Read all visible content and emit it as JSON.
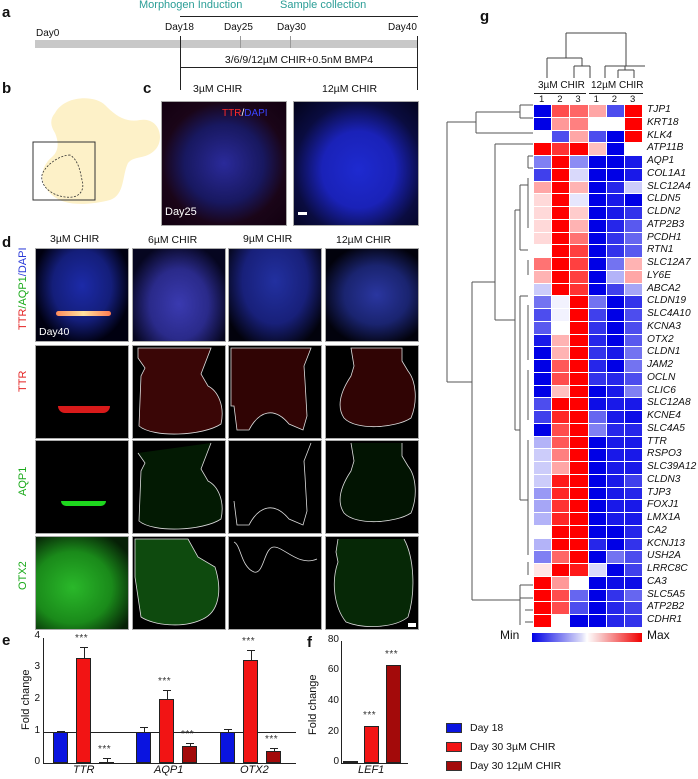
{
  "panels": {
    "a": {
      "label": "a",
      "phase_labels": [
        "Morphogen Induction",
        "Sample collection"
      ],
      "days": [
        "Day0",
        "Day18",
        "Day25",
        "Day30",
        "Day40"
      ],
      "treatment": "3/6/9/12µM CHIR+0.5nM BMP4"
    },
    "b": {
      "label": "b"
    },
    "c": {
      "label": "c",
      "conditions": [
        "3µM CHIR",
        "12µM CHIR"
      ],
      "stain_ttr": "TTR",
      "stain_sep": "/",
      "stain_dapi": "DAPI",
      "day": "Day25"
    },
    "d": {
      "label": "d",
      "conditions": [
        "3µM CHIR",
        "6µM CHIR",
        "9µM CHIR",
        "12µM CHIR"
      ],
      "row_labels": [
        "TTR/AQP1/DAPI",
        "TTR",
        "AQP1",
        "OTX2"
      ],
      "row1_parts": [
        "TTR",
        "/AQP1",
        "/DAPI"
      ],
      "day": "Day40"
    },
    "e": {
      "label": "e"
    },
    "f": {
      "label": "f"
    },
    "g": {
      "label": "g",
      "group_labels": [
        "3µM CHIR",
        "12µM CHIR"
      ],
      "replicates": [
        "1",
        "2",
        "3",
        "1",
        "2",
        "3"
      ],
      "scale_min": "Min",
      "scale_max": "Max"
    }
  },
  "legend": {
    "items": [
      {
        "label": "Day 18",
        "color": "#0a14e0"
      },
      {
        "label": "Day 30 3µM CHIR",
        "color": "#f21414"
      },
      {
        "label": "Day 30 12µM CHIR",
        "color": "#a30a0a"
      }
    ]
  },
  "chart_data": [
    {
      "type": "bar",
      "panel": "e",
      "title": "",
      "xlabel": "",
      "ylabel": "Fold change",
      "ylim": [
        0,
        4
      ],
      "yticks": [
        "0",
        "1",
        "2",
        "3",
        "4"
      ],
      "categories": [
        "TTR",
        "AQP1",
        "OTX2"
      ],
      "reference_line": 1,
      "series": [
        {
          "name": "Day 18",
          "values": [
            1.0,
            1.0,
            1.0
          ],
          "errors": [
            0.03,
            0.15,
            0.1
          ]
        },
        {
          "name": "Day 30 3µM CHIR",
          "values": [
            3.35,
            2.05,
            3.3
          ],
          "errors": [
            0.35,
            0.3,
            0.33
          ]
        },
        {
          "name": "Day 30 12µM CHIR",
          "values": [
            0.03,
            0.55,
            0.38
          ],
          "errors": [
            0.13,
            0.1,
            0.1
          ]
        }
      ],
      "annotations": [
        {
          "category": "TTR",
          "series": "Day 30 3µM CHIR",
          "text": "***"
        },
        {
          "category": "TTR",
          "series": "Day 30 12µM CHIR",
          "text": "***"
        },
        {
          "category": "AQP1",
          "series": "Day 30 3µM CHIR",
          "text": "***"
        },
        {
          "category": "AQP1",
          "series": "Day 30 12µM CHIR",
          "text": "***"
        },
        {
          "category": "OTX2",
          "series": "Day 30 3µM CHIR",
          "text": "***"
        },
        {
          "category": "OTX2",
          "series": "Day 30 12µM CHIR",
          "text": "***"
        }
      ]
    },
    {
      "type": "bar",
      "panel": "f",
      "title": "",
      "xlabel": "",
      "ylabel": "Fold change",
      "ylim": [
        0,
        80
      ],
      "yticks": [
        "0",
        "20",
        "40",
        "60",
        "80"
      ],
      "categories": [
        "LEF1"
      ],
      "series": [
        {
          "name": "Day 18",
          "values": [
            1.0
          ]
        },
        {
          "name": "Day 30 3µM CHIR",
          "values": [
            24
          ]
        },
        {
          "name": "Day 30 12µM CHIR",
          "values": [
            64.5
          ]
        }
      ],
      "annotations": [
        {
          "category": "LEF1",
          "series": "Day 30 3µM CHIR",
          "text": "***"
        },
        {
          "category": "LEF1",
          "series": "Day 30 12µM CHIR",
          "text": "***"
        }
      ]
    },
    {
      "type": "heatmap",
      "panel": "g",
      "title": "",
      "columns": [
        "3µM CHIR 1",
        "3µM CHIR 2",
        "3µM CHIR 3",
        "12µM CHIR 1",
        "12µM CHIR 2",
        "12µM CHIR 3"
      ],
      "scale": [
        "Min",
        "Max"
      ],
      "rows": [
        "TJP1",
        "KRT18",
        "KLK4",
        "ATP11B",
        "AQP1",
        "COL1A1",
        "SLC12A4",
        "CLDN5",
        "CLDN2",
        "ATP2B3",
        "PCDH1",
        "RTN1",
        "SLC12A7",
        "LY6E",
        "ABCA2",
        "CLDN19",
        "SLC4A10",
        "KCNA3",
        "OTX2",
        "CLDN1",
        "JAM2",
        "OCLN",
        "CLIC6",
        "SLC12A8",
        "KCNE4",
        "SLC4A5",
        "TTR",
        "RSPO3",
        "SLC39A12",
        "CLDN3",
        "TJP3",
        "FOXJ1",
        "LMX1A",
        "CA2",
        "KCNJ13",
        "USH2A",
        "LRRC8C",
        "CA3",
        "SLC5A5",
        "ATP2B2",
        "CDHR1"
      ],
      "values": [
        [
          -1,
          0.7,
          0.6,
          0.35,
          -0.7,
          1
        ],
        [
          -1,
          0.4,
          0.5,
          0,
          0,
          1
        ],
        [
          0,
          -0.7,
          0.35,
          -0.7,
          -1,
          1
        ],
        [
          1,
          0.8,
          1,
          0.25,
          -1,
          0
        ],
        [
          -0.5,
          1,
          -0.45,
          -1,
          -1,
          -0.9
        ],
        [
          -0.75,
          1,
          -0.15,
          -1,
          -1,
          -0.9
        ],
        [
          0.35,
          1,
          0.3,
          -1,
          -0.85,
          -0.2
        ],
        [
          0.15,
          1,
          -0.1,
          -1,
          -0.9,
          -1
        ],
        [
          0.15,
          1,
          0.2,
          -1,
          -0.9,
          -0.8
        ],
        [
          0.15,
          1,
          0.3,
          -1,
          -0.85,
          -0.65
        ],
        [
          0.15,
          1,
          0.55,
          -1,
          -0.8,
          -0.6
        ],
        [
          0,
          1,
          0.75,
          -1,
          -0.8,
          -0.65
        ],
        [
          0.55,
          1,
          0.75,
          -1,
          -0.55,
          0.3
        ],
        [
          0.3,
          1,
          0.75,
          -1,
          -0.3,
          0.35
        ],
        [
          -0.2,
          1,
          0.8,
          -1,
          -0.75,
          -0.35
        ],
        [
          -0.55,
          -0.05,
          1,
          -0.55,
          -1,
          -0.8
        ],
        [
          -0.7,
          -0.05,
          1,
          -0.75,
          -1,
          -0.7
        ],
        [
          -0.65,
          0,
          1,
          -0.8,
          -1,
          -0.7
        ],
        [
          -0.9,
          0.3,
          1,
          -0.85,
          -1,
          -0.65
        ],
        [
          -1,
          0.3,
          1,
          -0.8,
          -0.9,
          -0.55
        ],
        [
          -1,
          0.65,
          1,
          -0.85,
          -1,
          -0.55
        ],
        [
          -1,
          0.7,
          1,
          -0.8,
          -0.85,
          -0.7
        ],
        [
          -1,
          0.25,
          1,
          -1,
          -0.9,
          -0.5
        ],
        [
          -0.7,
          1,
          1,
          -0.95,
          -0.9,
          -0.9
        ],
        [
          -0.75,
          0.85,
          1,
          -0.6,
          -0.9,
          -0.95
        ],
        [
          -1,
          0.7,
          1,
          -0.5,
          -0.85,
          -0.85
        ],
        [
          -0.3,
          0.65,
          1,
          -1,
          -0.9,
          -0.9
        ],
        [
          -0.2,
          0.5,
          1,
          -1,
          -0.9,
          -0.9
        ],
        [
          -0.2,
          0.35,
          1,
          -1,
          -0.9,
          -0.9
        ],
        [
          -0.2,
          0.9,
          1,
          -1,
          -0.9,
          -0.75
        ],
        [
          -0.4,
          0.85,
          1,
          -1,
          -0.9,
          -0.85
        ],
        [
          -0.35,
          0.8,
          1,
          -1,
          -0.9,
          -0.9
        ],
        [
          -0.3,
          0.85,
          1,
          -1,
          -0.9,
          -0.9
        ],
        [
          0,
          1,
          1,
          -1,
          -1,
          -0.85
        ],
        [
          -0.3,
          1,
          1,
          -0.85,
          -1,
          -0.8
        ],
        [
          -0.5,
          0.6,
          1,
          -1,
          -0.55,
          -0.7
        ],
        [
          0.1,
          1,
          0.9,
          -0.15,
          -1,
          -0.75
        ],
        [
          1,
          0.4,
          0,
          -1,
          -0.95,
          -0.95
        ],
        [
          1,
          0.7,
          -0.6,
          -1,
          -0.8,
          -0.6
        ],
        [
          1,
          0.7,
          -0.7,
          -1,
          -0.85,
          -0.75
        ],
        [
          1,
          0,
          -1,
          -1,
          -0.85,
          -0.8
        ]
      ]
    }
  ]
}
